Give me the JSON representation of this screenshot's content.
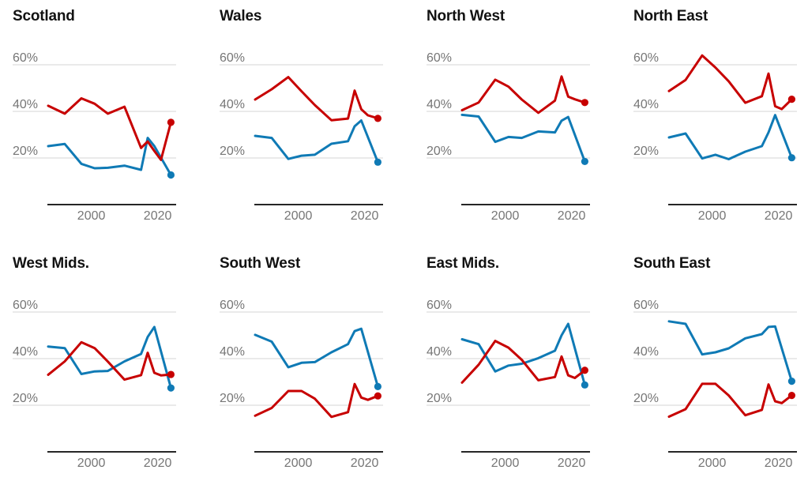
{
  "styles": {
    "red": "#c70000",
    "blue": "#0f7ab5",
    "grid_color": "#d4d4d4",
    "axis_color": "#262626",
    "label_color": "#767676",
    "title_color": "#121212",
    "background": "#ffffff"
  },
  "axis": {
    "y_ticks": [
      {
        "label": "60%",
        "value": 60
      },
      {
        "label": "40%",
        "value": 40
      },
      {
        "label": "20%",
        "value": 20
      }
    ],
    "x_ticks": [
      {
        "label": "2000",
        "year": 2000
      },
      {
        "label": "2020",
        "year": 2020
      }
    ],
    "x_range": [
      1987,
      2024
    ],
    "y_baseline": 0,
    "grid": true,
    "legend": "none"
  },
  "chart_data": [
    {
      "type": "line",
      "title": "Scotland",
      "series": [
        {
          "name": "blue",
          "x": [
            1987,
            1992,
            1997,
            2001,
            2005,
            2010,
            2015,
            2017,
            2019,
            2024
          ],
          "values": [
            25.1,
            26.0,
            17.5,
            15.6,
            15.8,
            16.7,
            14.9,
            28.6,
            25.1,
            12.7
          ],
          "end_dot": true
        },
        {
          "name": "red",
          "x": [
            1987,
            1992,
            1997,
            2001,
            2005,
            2010,
            2015,
            2017,
            2019,
            2021,
            2024
          ],
          "values": [
            42.4,
            39.0,
            45.6,
            43.3,
            39.0,
            42.0,
            24.3,
            27.1,
            23.0,
            19.2,
            35.3
          ],
          "end_dot": true
        }
      ]
    },
    {
      "type": "line",
      "title": "Wales",
      "series": [
        {
          "name": "blue",
          "x": [
            1987,
            1992,
            1997,
            2001,
            2005,
            2010,
            2015,
            2017,
            2019,
            2024
          ],
          "values": [
            29.5,
            28.6,
            19.6,
            21.0,
            21.4,
            26.1,
            27.2,
            33.6,
            36.1,
            18.2
          ],
          "end_dot": true
        },
        {
          "name": "red",
          "x": [
            1987,
            1992,
            1997,
            2001,
            2005,
            2010,
            2015,
            2017,
            2019,
            2021,
            2024
          ],
          "values": [
            45.1,
            49.5,
            54.7,
            48.6,
            42.7,
            36.2,
            36.9,
            48.9,
            40.9,
            38.3,
            37.0
          ],
          "end_dot": true
        }
      ]
    },
    {
      "type": "line",
      "title": "North West",
      "series": [
        {
          "name": "blue",
          "x": [
            1987,
            1992,
            1997,
            2001,
            2005,
            2010,
            2015,
            2017,
            2019,
            2024
          ],
          "values": [
            38.5,
            37.8,
            26.9,
            29.0,
            28.6,
            31.4,
            31.0,
            36.0,
            37.6,
            18.5
          ],
          "end_dot": true
        },
        {
          "name": "red",
          "x": [
            1987,
            1992,
            1997,
            2001,
            2005,
            2010,
            2015,
            2017,
            2019,
            2021,
            2024
          ],
          "values": [
            40.5,
            43.8,
            53.6,
            50.6,
            45.1,
            39.4,
            44.6,
            55.0,
            46.3,
            45.2,
            43.8
          ],
          "end_dot": true
        }
      ]
    },
    {
      "type": "line",
      "title": "North East",
      "series": [
        {
          "name": "blue",
          "x": [
            1987,
            1992,
            1997,
            2001,
            2005,
            2010,
            2015,
            2017,
            2019,
            2024
          ],
          "values": [
            28.8,
            30.5,
            19.8,
            21.4,
            19.5,
            22.7,
            25.1,
            31.0,
            38.4,
            20.1
          ],
          "end_dot": true
        },
        {
          "name": "red",
          "x": [
            1987,
            1992,
            1997,
            2001,
            2005,
            2010,
            2015,
            2017,
            2019,
            2021,
            2024
          ],
          "values": [
            48.7,
            53.5,
            64.0,
            58.8,
            52.9,
            43.7,
            46.5,
            56.2,
            42.2,
            41.0,
            45.2
          ],
          "end_dot": true
        }
      ]
    },
    {
      "type": "line",
      "title": "West Mids.",
      "series": [
        {
          "name": "blue",
          "x": [
            1987,
            1992,
            1997,
            2001,
            2005,
            2010,
            2015,
            2017,
            2019,
            2024
          ],
          "values": [
            45.2,
            44.5,
            33.4,
            34.5,
            34.7,
            38.8,
            42.0,
            49.3,
            53.6,
            27.4
          ],
          "end_dot": true
        },
        {
          "name": "red",
          "x": [
            1987,
            1992,
            1997,
            2001,
            2005,
            2010,
            2015,
            2017,
            2019,
            2021,
            2024
          ],
          "values": [
            33.1,
            38.8,
            47.0,
            44.5,
            38.7,
            31.0,
            32.9,
            42.5,
            33.9,
            32.8,
            33.2
          ],
          "end_dot": true
        }
      ]
    },
    {
      "type": "line",
      "title": "South West",
      "series": [
        {
          "name": "blue",
          "x": [
            1987,
            1992,
            1997,
            2001,
            2005,
            2010,
            2015,
            2017,
            2019,
            2024
          ],
          "values": [
            50.2,
            47.3,
            36.3,
            38.2,
            38.5,
            42.7,
            46.2,
            51.8,
            52.8,
            28.0
          ],
          "end_dot": true
        },
        {
          "name": "red",
          "x": [
            1987,
            1992,
            1997,
            2001,
            2005,
            2010,
            2015,
            2017,
            2019,
            2021,
            2024
          ],
          "values": [
            15.5,
            18.8,
            26.1,
            26.1,
            22.8,
            15.0,
            17.0,
            29.1,
            23.3,
            22.3,
            24.0
          ],
          "end_dot": true
        }
      ]
    },
    {
      "type": "line",
      "title": "East Mids.",
      "series": [
        {
          "name": "blue",
          "x": [
            1987,
            1992,
            1997,
            2001,
            2005,
            2010,
            2015,
            2017,
            2019,
            2024
          ],
          "values": [
            48.3,
            46.2,
            34.5,
            37.0,
            37.8,
            40.2,
            43.4,
            50.0,
            54.9,
            28.7
          ],
          "end_dot": true
        },
        {
          "name": "red",
          "x": [
            1987,
            1992,
            1997,
            2001,
            2005,
            2010,
            2015,
            2017,
            2019,
            2021,
            2024
          ],
          "values": [
            29.7,
            37.4,
            47.6,
            44.7,
            39.5,
            30.7,
            32.1,
            40.9,
            32.8,
            31.7,
            35.0
          ],
          "end_dot": true
        }
      ]
    },
    {
      "type": "line",
      "title": "South East",
      "series": [
        {
          "name": "blue",
          "x": [
            1987,
            1992,
            1997,
            2001,
            2005,
            2010,
            2015,
            2017,
            2019,
            2024
          ],
          "values": [
            56.0,
            54.9,
            41.8,
            42.7,
            44.4,
            48.7,
            50.5,
            53.6,
            53.8,
            30.3
          ],
          "end_dot": true
        },
        {
          "name": "red",
          "x": [
            1987,
            1992,
            1997,
            2001,
            2005,
            2010,
            2015,
            2017,
            2019,
            2021,
            2024
          ],
          "values": [
            15.1,
            18.3,
            29.2,
            29.2,
            24.2,
            15.7,
            18.0,
            28.9,
            21.7,
            20.9,
            24.2
          ],
          "end_dot": true
        }
      ]
    }
  ]
}
